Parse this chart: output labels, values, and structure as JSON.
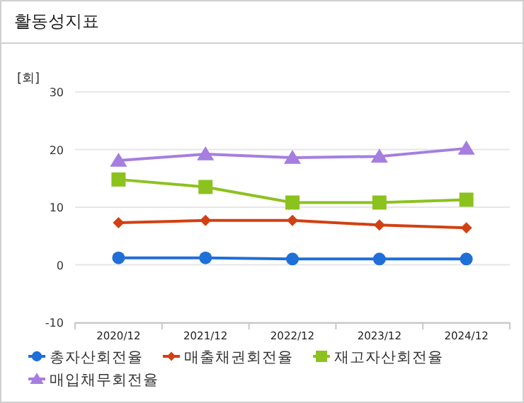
{
  "chart_data": {
    "type": "line",
    "title": "활동성지표",
    "ylabel": "[회]",
    "categories": [
      "2020/12",
      "2021/12",
      "2022/12",
      "2023/12",
      "2024/12"
    ],
    "series": [
      {
        "name": "총자산회전율",
        "color": "#1f6fd8",
        "marker": "circle",
        "values": [
          1.2,
          1.2,
          1.0,
          1.0,
          1.0
        ]
      },
      {
        "name": "매출채권회전율",
        "color": "#d24012",
        "marker": "diamond",
        "values": [
          7.3,
          7.7,
          7.7,
          6.9,
          6.4
        ]
      },
      {
        "name": "재고자산회전율",
        "color": "#8cc21e",
        "marker": "square",
        "values": [
          14.8,
          13.5,
          10.8,
          10.8,
          11.3
        ]
      },
      {
        "name": "매입채무회전율",
        "color": "#a57ee0",
        "marker": "triangle",
        "values": [
          18.1,
          19.2,
          18.6,
          18.8,
          20.2
        ]
      }
    ],
    "ylim": [
      -10,
      30
    ],
    "yticks": [
      -10,
      0,
      10,
      20,
      30
    ],
    "grid": "y",
    "legend": "bottom"
  }
}
